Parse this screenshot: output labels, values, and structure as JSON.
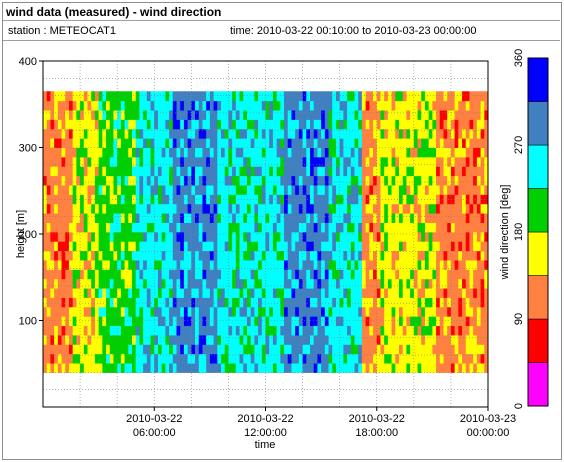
{
  "header": {
    "title": "wind data (measured) - wind direction",
    "station": "station : METEOCAT1",
    "time_range": "time: 2010-03-22 00:10:00 to 2010-03-23 00:00:00"
  },
  "chart_data": {
    "type": "heatmap",
    "title": "wind data (measured) - wind direction",
    "xlabel": "time",
    "ylabel": "height [m]",
    "x_ticks": [
      "2010-03-22\n06:00:00",
      "2010-03-22\n12:00:00",
      "2010-03-22\n18:00:00",
      "2010-03-23\n00:00:00"
    ],
    "x_range_hours": [
      0,
      24
    ],
    "y_ticks": [
      100,
      200,
      300,
      400
    ],
    "ylim": [
      0,
      400
    ],
    "data_height_range": [
      40,
      365
    ],
    "colorbar": {
      "label": "wind direction [deg]",
      "ticks": [
        0,
        90,
        180,
        270,
        360
      ],
      "bins": [
        {
          "from": 0,
          "to": 45,
          "color": "#ff00ff"
        },
        {
          "from": 45,
          "to": 90,
          "color": "#ff0000"
        },
        {
          "from": 90,
          "to": 135,
          "color": "#ff8040"
        },
        {
          "from": 135,
          "to": 180,
          "color": "#ffff00"
        },
        {
          "from": 180,
          "to": 225,
          "color": "#00d000"
        },
        {
          "from": 225,
          "to": 270,
          "color": "#00ffff"
        },
        {
          "from": 270,
          "to": 315,
          "color": "#4080c0"
        },
        {
          "from": 315,
          "to": 360,
          "color": "#0000ff"
        }
      ]
    },
    "grid": true,
    "time_segments_hours": [
      {
        "t0": 0.0,
        "t1": 1.6,
        "dominant_deg": 115
      },
      {
        "t0": 1.6,
        "t1": 3.0,
        "dominant_deg": 160
      },
      {
        "t0": 3.0,
        "t1": 5.0,
        "dominant_deg": 200
      },
      {
        "t0": 5.0,
        "t1": 7.0,
        "dominant_deg": 250
      },
      {
        "t0": 7.0,
        "t1": 9.5,
        "dominant_deg": 290
      },
      {
        "t0": 9.5,
        "t1": 13.0,
        "dominant_deg": 245
      },
      {
        "t0": 13.0,
        "t1": 15.5,
        "dominant_deg": 290
      },
      {
        "t0": 15.5,
        "t1": 17.2,
        "dominant_deg": 245
      },
      {
        "t0": 17.2,
        "t1": 18.2,
        "dominant_deg": 120
      },
      {
        "t0": 18.2,
        "t1": 21.3,
        "dominant_deg": 160
      },
      {
        "t0": 21.3,
        "t1": 24.0,
        "dominant_deg": 115
      }
    ]
  }
}
